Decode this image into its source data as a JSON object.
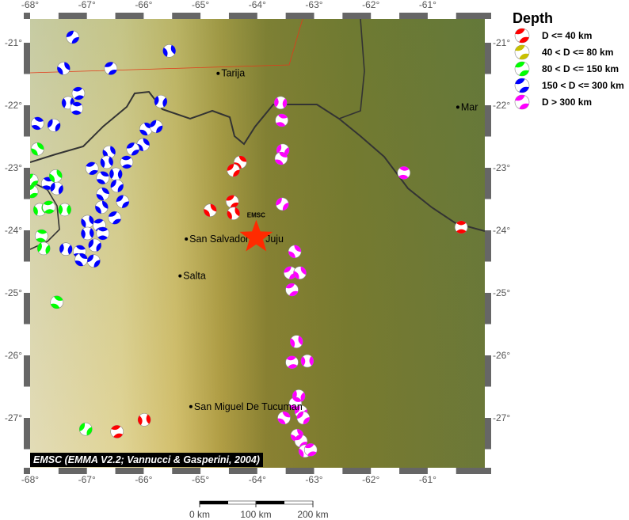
{
  "map": {
    "lon_range": [
      -68.0,
      -60.1
    ],
    "lat_range": [
      -27.8,
      -20.6
    ],
    "lon_ticks": [
      "-68°",
      "-67°",
      "-66°",
      "-65°",
      "-64°",
      "-63°",
      "-62°",
      "-61°"
    ],
    "lat_ticks": [
      "-21°",
      "-22°",
      "-23°",
      "-24°",
      "-25°",
      "-26°",
      "-27°"
    ],
    "credit": "EMSC (EMMA V2.2; Vannucci & Gasperini, 2004)",
    "epicenter": {
      "lon": -64.02,
      "lat": -24.11,
      "label": "EMSC",
      "color": "#ff2a00"
    },
    "cities": [
      {
        "name": "Tarija",
        "lon": -64.69,
        "lat": -21.49
      },
      {
        "name": "San Salvador de Juju",
        "lon": -65.25,
        "lat": -24.14
      },
      {
        "name": "Salta",
        "lon": -65.36,
        "lat": -24.73
      },
      {
        "name": "San Miguel De Tucuman",
        "lon": -65.17,
        "lat": -26.82
      },
      {
        "name": "Mar",
        "lon": -60.47,
        "lat": -22.03
      }
    ],
    "scale_bar": {
      "labels": [
        "0 km",
        "100 km",
        "200 km"
      ]
    }
  },
  "legend": {
    "title": "Depth",
    "items": [
      {
        "label": "D <= 40 km",
        "color": "#ff0000"
      },
      {
        "label": "40 < D <= 80 km",
        "color": "#c8c000"
      },
      {
        "label": "80 < D <= 150 km",
        "color": "#00ff00"
      },
      {
        "label": "150 < D <= 300 km",
        "color": "#0000ff"
      },
      {
        "label": "D > 300 km",
        "color": "#ff00ff"
      }
    ]
  },
  "events": [
    {
      "lon": -67.25,
      "lat": -20.91,
      "d": 3
    },
    {
      "lon": -67.41,
      "lat": -21.41,
      "d": 3
    },
    {
      "lon": -66.58,
      "lat": -21.41,
      "d": 3
    },
    {
      "lon": -65.55,
      "lat": -21.13,
      "d": 3
    },
    {
      "lon": -67.15,
      "lat": -21.81,
      "d": 3
    },
    {
      "lon": -67.33,
      "lat": -21.96,
      "d": 3
    },
    {
      "lon": -67.18,
      "lat": -22.05,
      "d": 3
    },
    {
      "lon": -65.7,
      "lat": -21.94,
      "d": 3
    },
    {
      "lon": -67.87,
      "lat": -22.29,
      "d": 3
    },
    {
      "lon": -67.58,
      "lat": -22.32,
      "d": 3
    },
    {
      "lon": -65.96,
      "lat": -22.38,
      "d": 3
    },
    {
      "lon": -65.78,
      "lat": -22.34,
      "d": 3
    },
    {
      "lon": -66.01,
      "lat": -22.63,
      "d": 3
    },
    {
      "lon": -66.19,
      "lat": -22.7,
      "d": 3
    },
    {
      "lon": -66.61,
      "lat": -22.75,
      "d": 3
    },
    {
      "lon": -66.91,
      "lat": -23.01,
      "d": 3
    },
    {
      "lon": -66.65,
      "lat": -22.91,
      "d": 3
    },
    {
      "lon": -66.3,
      "lat": -22.91,
      "d": 3
    },
    {
      "lon": -66.49,
      "lat": -23.1,
      "d": 3
    },
    {
      "lon": -67.69,
      "lat": -23.25,
      "d": 3
    },
    {
      "lon": -67.53,
      "lat": -23.33,
      "d": 3
    },
    {
      "lon": -66.72,
      "lat": -23.16,
      "d": 3
    },
    {
      "lon": -66.47,
      "lat": -23.29,
      "d": 3
    },
    {
      "lon": -66.72,
      "lat": -23.42,
      "d": 3
    },
    {
      "lon": -66.37,
      "lat": -23.54,
      "d": 3
    },
    {
      "lon": -66.74,
      "lat": -23.63,
      "d": 3
    },
    {
      "lon": -66.51,
      "lat": -23.8,
      "d": 3
    },
    {
      "lon": -66.99,
      "lat": -23.86,
      "d": 3
    },
    {
      "lon": -66.78,
      "lat": -23.92,
      "d": 3
    },
    {
      "lon": -66.99,
      "lat": -24.05,
      "d": 3
    },
    {
      "lon": -66.72,
      "lat": -24.05,
      "d": 3
    },
    {
      "lon": -67.37,
      "lat": -24.3,
      "d": 3
    },
    {
      "lon": -67.13,
      "lat": -24.34,
      "d": 3
    },
    {
      "lon": -66.86,
      "lat": -24.24,
      "d": 3
    },
    {
      "lon": -67.1,
      "lat": -24.47,
      "d": 3
    },
    {
      "lon": -66.88,
      "lat": -24.49,
      "d": 3
    },
    {
      "lon": -67.87,
      "lat": -22.7,
      "d": 2
    },
    {
      "lon": -67.97,
      "lat": -23.2,
      "d": 2
    },
    {
      "lon": -67.55,
      "lat": -23.13,
      "d": 2
    },
    {
      "lon": -67.97,
      "lat": -23.38,
      "d": 2
    },
    {
      "lon": -67.83,
      "lat": -23.67,
      "d": 2
    },
    {
      "lon": -67.67,
      "lat": -23.63,
      "d": 2
    },
    {
      "lon": -67.39,
      "lat": -23.67,
      "d": 2
    },
    {
      "lon": -67.8,
      "lat": -24.09,
      "d": 2
    },
    {
      "lon": -67.76,
      "lat": -24.29,
      "d": 2
    },
    {
      "lon": -67.53,
      "lat": -25.15,
      "d": 2
    },
    {
      "lon": -67.02,
      "lat": -27.18,
      "d": 2
    },
    {
      "lon": -64.3,
      "lat": -22.91,
      "d": 0
    },
    {
      "lon": -64.42,
      "lat": -23.04,
      "d": 0
    },
    {
      "lon": -64.83,
      "lat": -23.68,
      "d": 0
    },
    {
      "lon": -64.44,
      "lat": -23.54,
      "d": 0
    },
    {
      "lon": -64.42,
      "lat": -23.73,
      "d": 0
    },
    {
      "lon": -66.47,
      "lat": -27.22,
      "d": 0
    },
    {
      "lon": -65.99,
      "lat": -27.03,
      "d": 0
    },
    {
      "lon": -60.41,
      "lat": -23.95,
      "d": 0
    },
    {
      "lon": -63.59,
      "lat": -21.96,
      "d": 4
    },
    {
      "lon": -63.57,
      "lat": -22.24,
      "d": 4
    },
    {
      "lon": -63.55,
      "lat": -22.72,
      "d": 4
    },
    {
      "lon": -63.58,
      "lat": -22.85,
      "d": 4
    },
    {
      "lon": -63.56,
      "lat": -23.58,
      "d": 4
    },
    {
      "lon": -63.34,
      "lat": -24.34,
      "d": 4
    },
    {
      "lon": -63.42,
      "lat": -24.68,
      "d": 4
    },
    {
      "lon": -63.25,
      "lat": -24.68,
      "d": 4
    },
    {
      "lon": -63.39,
      "lat": -24.95,
      "d": 4
    },
    {
      "lon": -63.31,
      "lat": -25.78,
      "d": 4
    },
    {
      "lon": -63.39,
      "lat": -26.11,
      "d": 4
    },
    {
      "lon": -63.12,
      "lat": -26.09,
      "d": 4
    },
    {
      "lon": -61.42,
      "lat": -23.08,
      "d": 4
    },
    {
      "lon": -63.27,
      "lat": -26.65,
      "d": 4
    },
    {
      "lon": -63.33,
      "lat": -26.77,
      "d": 4
    },
    {
      "lon": -63.23,
      "lat": -26.9,
      "d": 4
    },
    {
      "lon": -63.53,
      "lat": -27.0,
      "d": 4
    },
    {
      "lon": -63.19,
      "lat": -27.0,
      "d": 4
    },
    {
      "lon": -63.3,
      "lat": -27.28,
      "d": 4
    },
    {
      "lon": -63.23,
      "lat": -27.37,
      "d": 4
    },
    {
      "lon": -63.16,
      "lat": -27.53,
      "d": 4
    },
    {
      "lon": -63.06,
      "lat": -27.51,
      "d": 4
    }
  ]
}
